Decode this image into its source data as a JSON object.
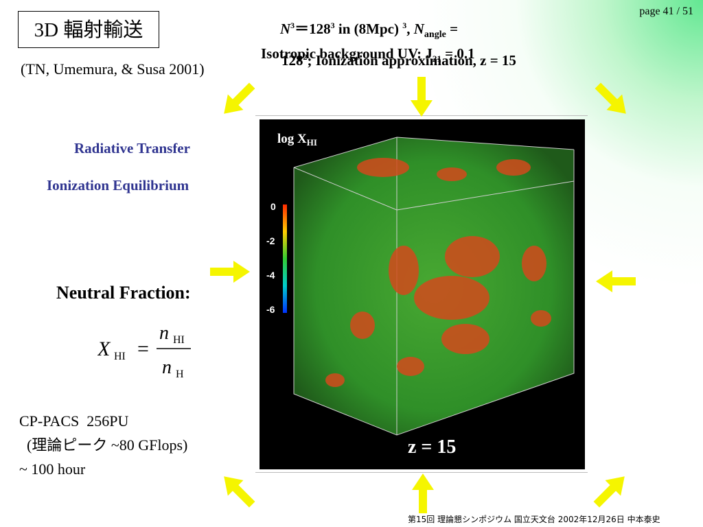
{
  "slide": {
    "title": "3D 輻射輸送",
    "page": "page 41 / 51",
    "citation": "(TN, Umemura, & Susa 2001)",
    "header": {
      "line1_n": "N",
      "line1_sup": "3",
      "line1_eq": "＝128",
      "line1_sup2": "3",
      "line1_rest": " in (8Mpc) ",
      "line1_sup3": "3",
      "line1_comma": ", ",
      "line1_n2": "N",
      "line1_sub": "angle",
      "line1_end": " =",
      "line2": "Isotropic background UV: J",
      "line2_sub": "21",
      "line2_end": " = 0.1",
      "line3": "128",
      "line3_sup": "2",
      "line3_end": "; Ionization approximation, z = 15"
    },
    "labels": {
      "radiative": "Radiative Transfer",
      "ionization": "Ionization Equilibrium",
      "neutral": "Neutral Fraction:"
    },
    "equation": {
      "lhs": "X",
      "lhs_sub": "HI",
      "equals": "=",
      "num": "n",
      "num_sub": "HI",
      "den": "n",
      "den_sub": "H"
    },
    "compute": {
      "line1": "CP-PACS  256PU",
      "line2": "  (理論ピーク ~80 GFlops)",
      "line3": "~ 100 hour"
    },
    "panel": {
      "title": "log X",
      "title_sub": "HI",
      "scale": [
        "0",
        "-2",
        "-4",
        "-6"
      ],
      "redshift": "z = 15"
    },
    "footer": "第15回 理論懇シンポジウム 国立天文台 2002年12月26日 中本泰史",
    "colors": {
      "arrow": "#f5f500",
      "blue_text": "#2f3490",
      "cube_green": "#3a9a2a",
      "cube_red": "#d24a1c"
    }
  }
}
